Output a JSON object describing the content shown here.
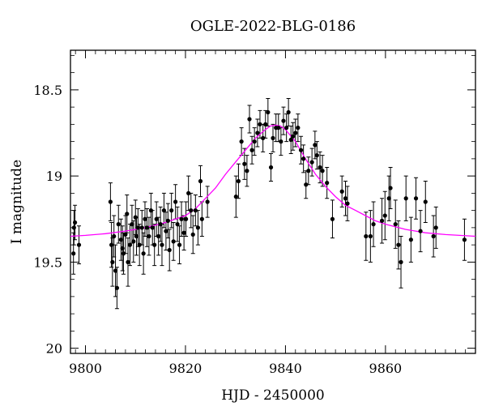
{
  "chart_data": {
    "type": "scatter",
    "title": "OGLE-2022-BLG-0186",
    "xlabel": "HJD - 2450000",
    "ylabel": "I magnitude",
    "xlim": [
      9797,
      9878
    ],
    "ylim": [
      20.03,
      18.27
    ],
    "y_inverted": true,
    "x_ticks": [
      9800,
      9820,
      9840,
      9860
    ],
    "y_ticks": [
      18.5,
      19,
      19.5,
      20
    ],
    "y_tick_labels": [
      "18.5",
      "19",
      "19.5",
      "20"
    ],
    "grid": false,
    "colors": {
      "points": "#000000",
      "model": "#ff00ff"
    },
    "series": [
      {
        "kind": "points",
        "x": [
          9797.6,
          9797.9,
          9798.7,
          9797.7,
          9805.0,
          9805.2,
          9805.4,
          9805.7,
          9806.0,
          9806.3,
          9806.6,
          9807.1,
          9807.4,
          9807.6,
          9808.0,
          9808.3,
          9808.5,
          9808.9,
          9809.3,
          9809.6,
          9810.0,
          9810.2,
          9810.5,
          9810.8,
          9811.3,
          9811.6,
          9811.9,
          9812.3,
          9812.7,
          9813.1,
          9813.4,
          9813.8,
          9814.2,
          9814.6,
          9815.0,
          9815.3,
          9815.7,
          9816.1,
          9816.5,
          9816.8,
          9817.2,
          9817.6,
          9818.0,
          9818.4,
          9818.8,
          9819.2,
          9819.7,
          9820.1,
          9820.6,
          9821.1,
          9821.5,
          9822.0,
          9822.5,
          9823.0,
          9823.3,
          9824.4,
          9830.1,
          9830.6,
          9831.2,
          9831.8,
          9832.3,
          9832.8,
          9833.3,
          9833.8,
          9834.4,
          9834.9,
          9835.5,
          9836.0,
          9836.5,
          9837.1,
          9837.5,
          9838.1,
          9838.6,
          9839.1,
          9839.6,
          9840.2,
          9840.6,
          9841.1,
          9841.5,
          9842.0,
          9842.5,
          9843.1,
          9843.6,
          9844.1,
          9844.6,
          9845.3,
          9845.9,
          9846.3,
          9846.9,
          9847.4,
          9848.3,
          9849.4,
          9851.3,
          9852.0,
          9852.4,
          9856.1,
          9857.0,
          9857.6,
          9859.3,
          9859.9,
          9860.7,
          9861.0,
          9862.0,
          9862.6,
          9863.1,
          9864.1,
          9865.1,
          9866.1,
          9867.0,
          9868.0,
          9869.6,
          9870.1,
          9875.8
        ],
        "y": [
          19.45,
          19.27,
          19.4,
          19.3,
          19.15,
          19.4,
          19.5,
          19.35,
          19.55,
          19.65,
          19.28,
          19.37,
          19.42,
          19.45,
          19.34,
          19.22,
          19.5,
          19.4,
          19.28,
          19.38,
          19.24,
          19.35,
          19.3,
          19.4,
          19.3,
          19.45,
          19.25,
          19.3,
          19.35,
          19.2,
          19.3,
          19.4,
          19.25,
          19.35,
          19.28,
          19.4,
          19.2,
          19.32,
          19.26,
          19.43,
          19.2,
          19.38,
          19.15,
          19.28,
          19.4,
          19.25,
          19.33,
          19.25,
          19.1,
          19.2,
          19.34,
          19.2,
          19.3,
          19.03,
          19.25,
          19.15,
          19.12,
          19.03,
          18.8,
          18.93,
          18.97,
          18.67,
          18.85,
          18.8,
          18.75,
          18.7,
          18.78,
          18.7,
          18.63,
          18.95,
          18.78,
          18.72,
          18.72,
          18.8,
          18.68,
          18.72,
          18.63,
          18.79,
          18.77,
          18.75,
          18.72,
          18.85,
          18.9,
          19.05,
          18.97,
          18.92,
          18.82,
          18.88,
          18.95,
          18.97,
          19.04,
          19.25,
          19.09,
          19.13,
          19.16,
          19.35,
          19.35,
          19.28,
          19.26,
          19.23,
          19.13,
          19.07,
          19.28,
          19.4,
          19.5,
          19.13,
          19.37,
          19.13,
          19.32,
          19.15,
          19.35,
          19.3,
          19.37
        ],
        "yerr": [
          0.12,
          0.1,
          0.11,
          0.1,
          0.11,
          0.13,
          0.14,
          0.12,
          0.15,
          0.12,
          0.11,
          0.12,
          0.13,
          0.12,
          0.11,
          0.11,
          0.14,
          0.12,
          0.11,
          0.12,
          0.1,
          0.11,
          0.11,
          0.12,
          0.1,
          0.12,
          0.1,
          0.11,
          0.11,
          0.1,
          0.1,
          0.12,
          0.1,
          0.11,
          0.1,
          0.12,
          0.1,
          0.11,
          0.1,
          0.12,
          0.1,
          0.11,
          0.1,
          0.1,
          0.11,
          0.1,
          0.1,
          0.1,
          0.1,
          0.1,
          0.11,
          0.09,
          0.1,
          0.09,
          0.1,
          0.09,
          0.12,
          0.1,
          0.08,
          0.09,
          0.09,
          0.08,
          0.08,
          0.08,
          0.08,
          0.08,
          0.08,
          0.08,
          0.08,
          0.08,
          0.08,
          0.08,
          0.08,
          0.08,
          0.08,
          0.08,
          0.08,
          0.08,
          0.08,
          0.08,
          0.08,
          0.08,
          0.08,
          0.08,
          0.08,
          0.08,
          0.08,
          0.08,
          0.09,
          0.09,
          0.09,
          0.11,
          0.09,
          0.1,
          0.1,
          0.14,
          0.15,
          0.13,
          0.13,
          0.14,
          0.13,
          0.12,
          0.14,
          0.14,
          0.15,
          0.13,
          0.13,
          0.12,
          0.12,
          0.12,
          0.12,
          0.12,
          0.12
        ]
      },
      {
        "kind": "model",
        "x": [
          9797,
          9800,
          9804,
          9808,
          9812,
          9816,
          9820,
          9822,
          9824,
          9826,
          9828,
          9830,
          9832,
          9834,
          9836,
          9837,
          9838,
          9839,
          9840,
          9842,
          9844,
          9846,
          9848,
          9850,
          9852,
          9854,
          9856,
          9858,
          9860,
          9864,
          9868,
          9872,
          9878
        ],
        "y": [
          19.35,
          19.345,
          19.335,
          19.32,
          19.3,
          19.27,
          19.23,
          19.19,
          19.13,
          19.07,
          18.99,
          18.92,
          18.85,
          18.78,
          18.73,
          18.71,
          18.705,
          18.71,
          18.73,
          18.8,
          18.9,
          18.99,
          19.06,
          19.12,
          19.17,
          19.2,
          19.23,
          19.26,
          19.28,
          19.31,
          19.33,
          19.34,
          19.35
        ]
      }
    ]
  }
}
